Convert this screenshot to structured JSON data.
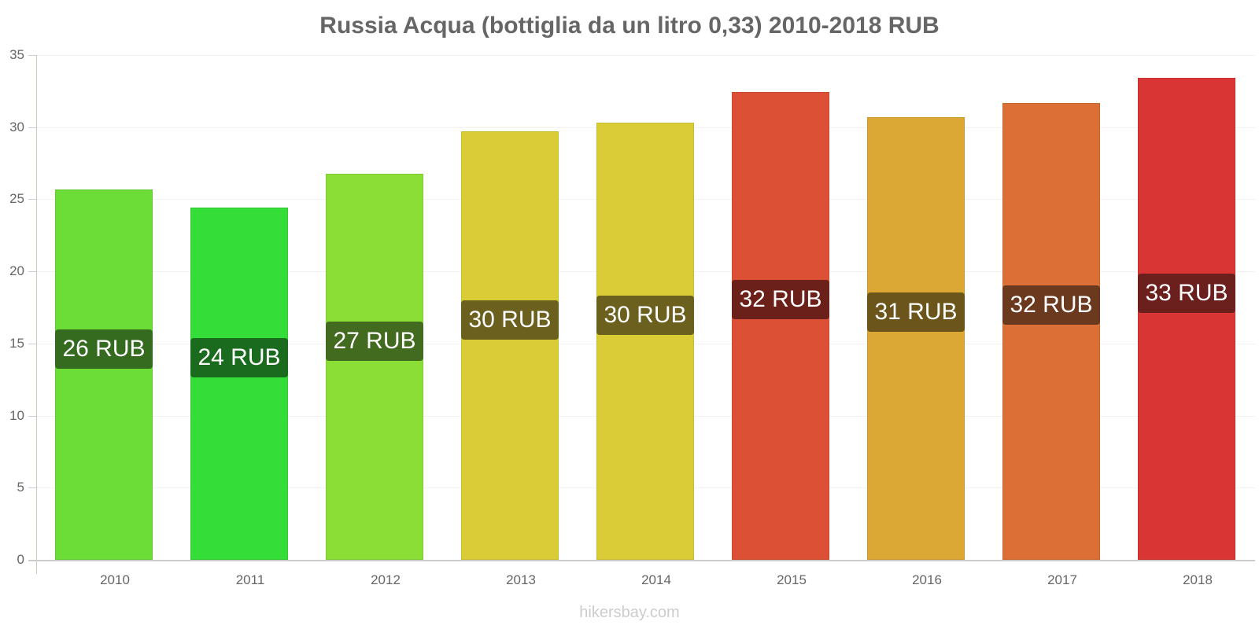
{
  "title": "Russia Acqua (bottiglia da un litro 0,33) 2010-2018 RUB",
  "footer": "hikersbay.com",
  "chart_data": {
    "type": "bar",
    "title": "Russia Acqua (bottiglia da un litro 0,33) 2010-2018 RUB",
    "xlabel": "",
    "ylabel": "",
    "ylim": [
      0,
      35
    ],
    "yticks": [
      0,
      5,
      10,
      15,
      20,
      25,
      30,
      35
    ],
    "grid": true,
    "legend": "none",
    "categories": [
      "2010",
      "2011",
      "2012",
      "2013",
      "2014",
      "2015",
      "2016",
      "2017",
      "2018"
    ],
    "values": [
      25.66,
      24.4,
      26.75,
      29.7,
      30.3,
      32.45,
      30.7,
      31.7,
      33.4
    ],
    "data_labels": [
      "26 RUB",
      "24 RUB",
      "27 RUB",
      "30 RUB",
      "30 RUB",
      "32 RUB",
      "31 RUB",
      "32 RUB",
      "33 RUB"
    ],
    "bar_colors": [
      "#6cdd36",
      "#35dd38",
      "#8ade36",
      "#dacc36",
      "#dacc36",
      "#dc5135",
      "#dca835",
      "#dc6f35",
      "#da3535"
    ],
    "label_colors": [
      "#356b1f",
      "#1a6b1e",
      "#436b1f",
      "#6b601e",
      "#6b601e",
      "#6b2019",
      "#6b551a",
      "#6b391d",
      "#6b201d"
    ]
  }
}
